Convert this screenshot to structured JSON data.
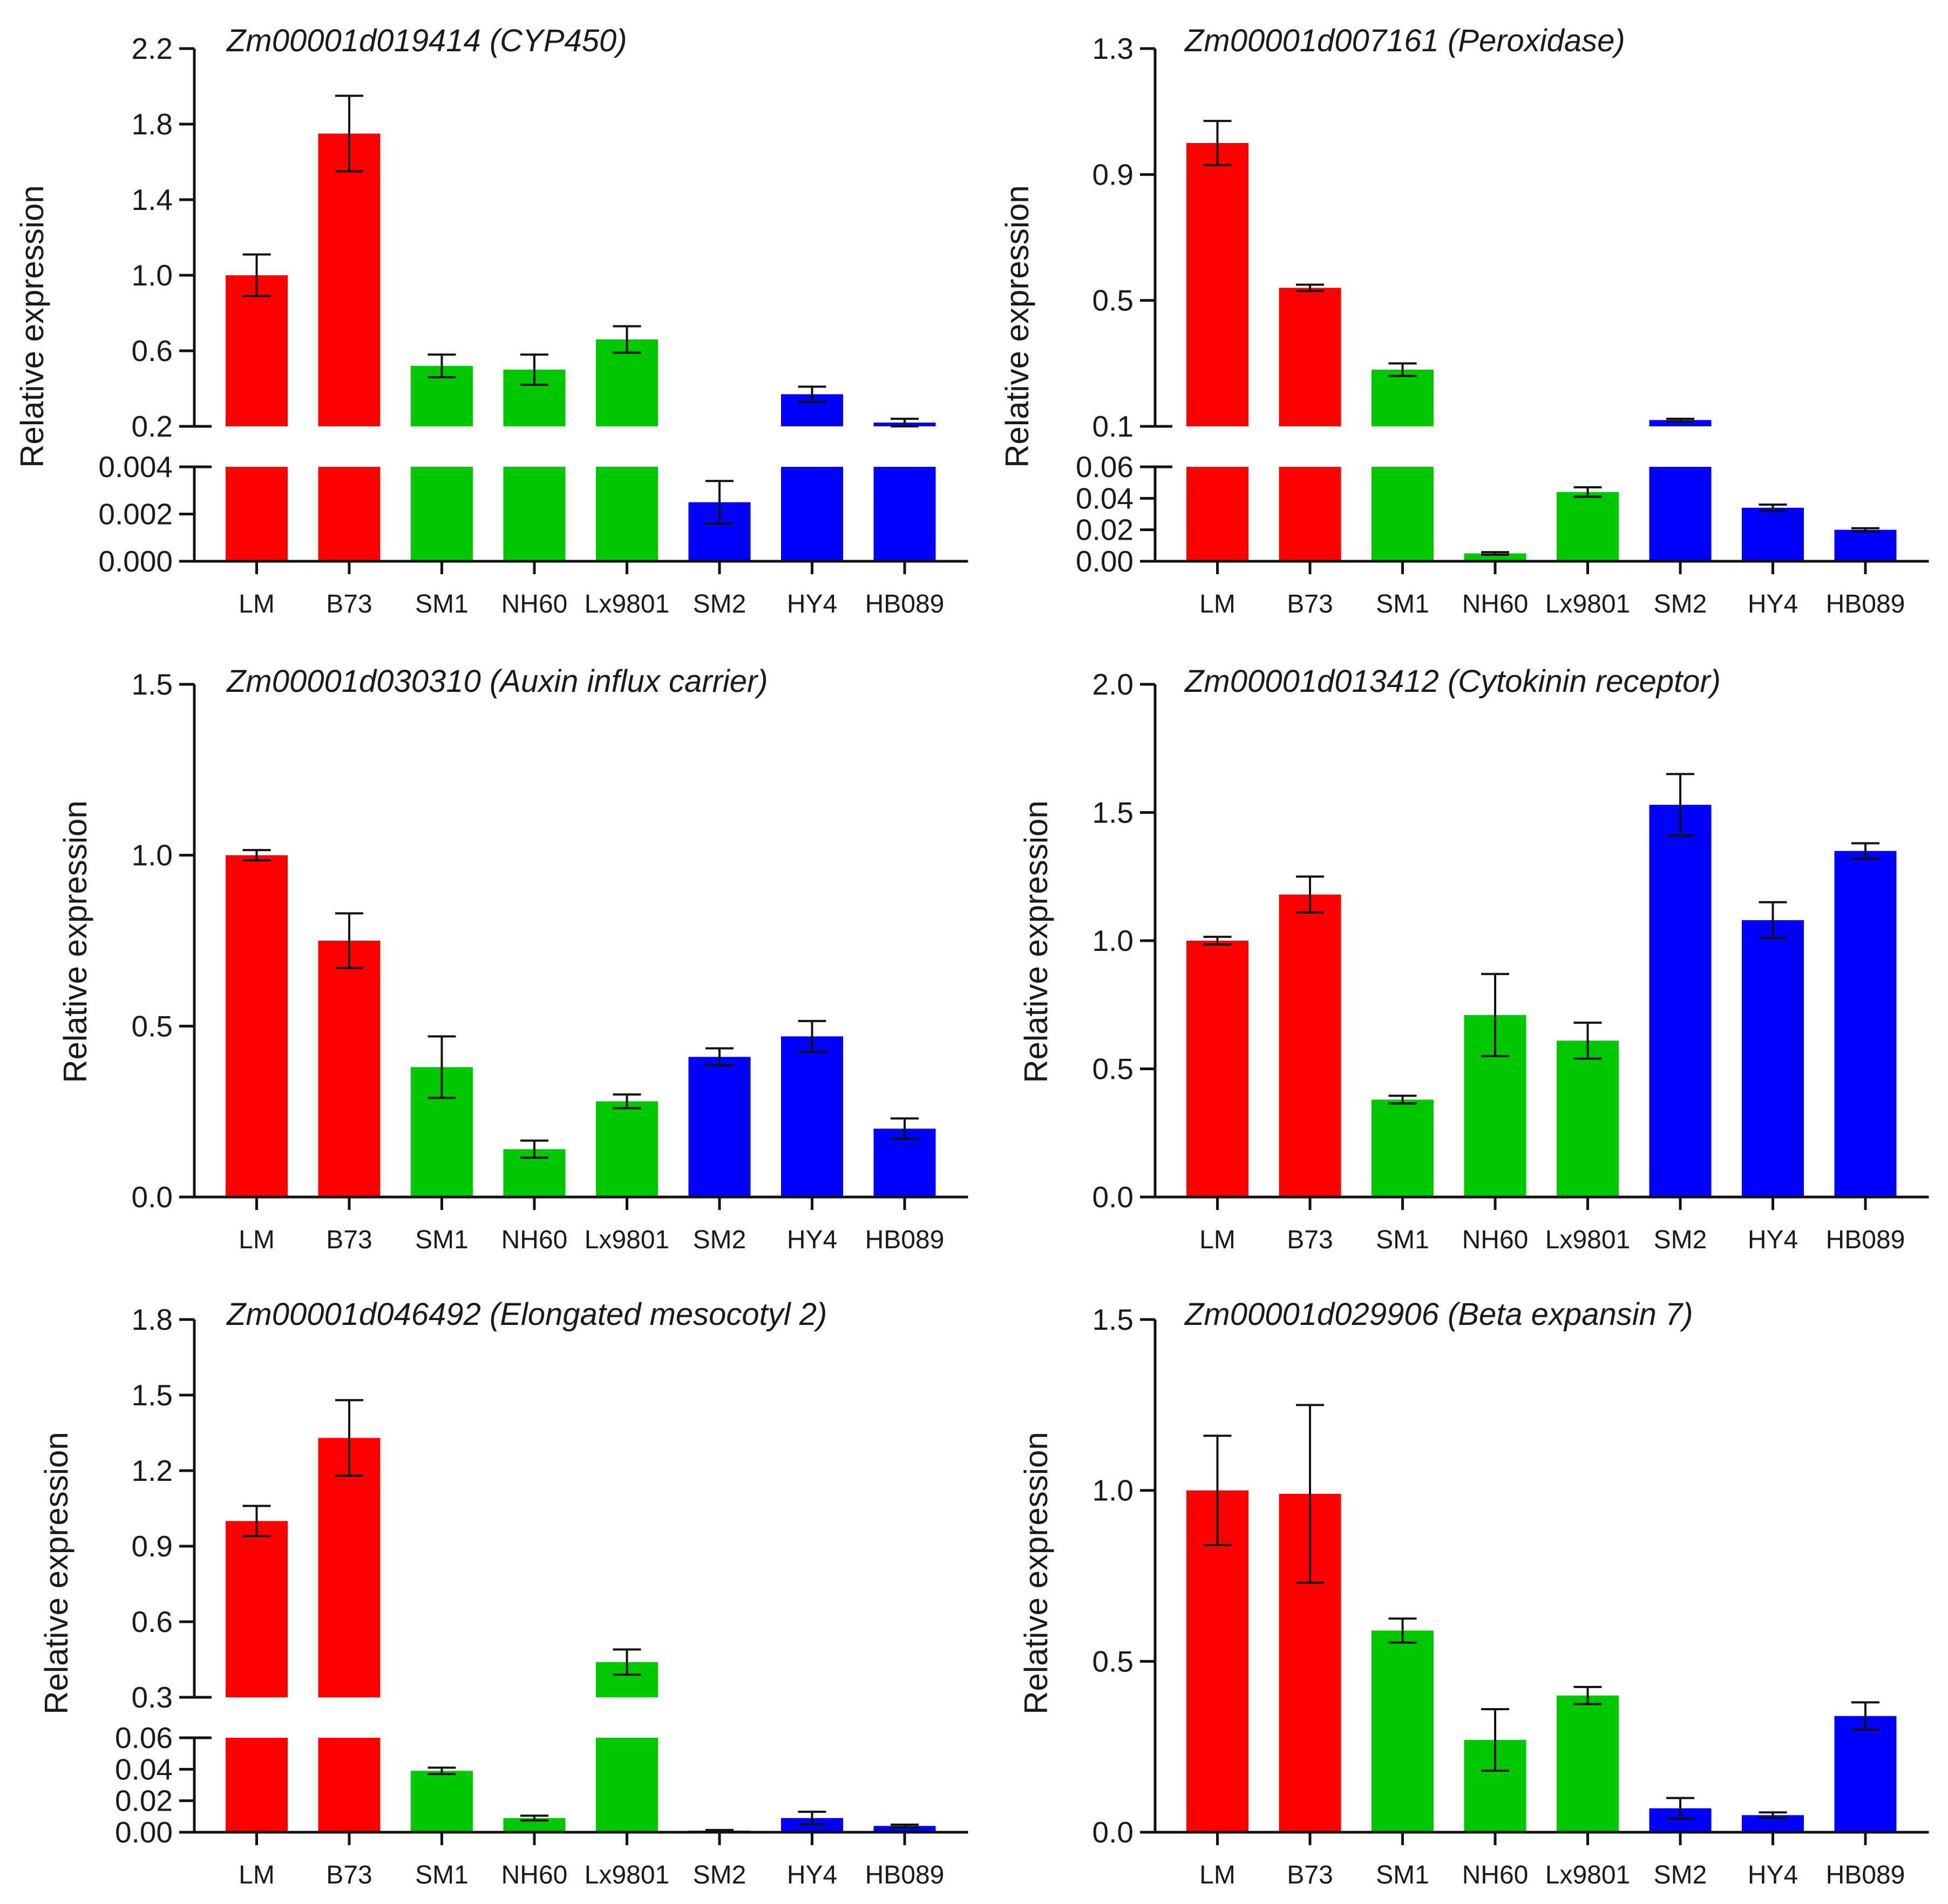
{
  "colors": {
    "red": "#ff0000",
    "green": "#00c800",
    "blue": "#0000ff"
  },
  "chart_data": [
    {
      "type": "bar",
      "title": "Zm00001d019414 (CYP450)",
      "ylabel": "Relative expression",
      "categories": [
        "LM",
        "B73",
        "SM1",
        "NH60",
        "Lx9801",
        "SM2",
        "HY4",
        "HB089"
      ],
      "bar_colors": [
        "red",
        "red",
        "green",
        "green",
        "green",
        "blue",
        "blue",
        "blue"
      ],
      "values": [
        1.0,
        1.75,
        0.52,
        0.5,
        0.66,
        0.0025,
        0.37,
        0.22
      ],
      "errors": [
        0.11,
        0.2,
        0.06,
        0.08,
        0.07,
        0.0009,
        0.04,
        0.02
      ],
      "axis_break": true,
      "lower_range": [
        0,
        0.004
      ],
      "lower_ticks": [
        "0.000",
        "0.002",
        "0.004"
      ],
      "upper_range": [
        0.2,
        2.2
      ],
      "upper_ticks": [
        "0.2",
        "0.6",
        "1.0",
        "1.4",
        "1.8",
        "2.2"
      ]
    },
    {
      "type": "bar",
      "title": "Zm00001d007161 (Peroxidase)",
      "ylabel": "Relative expression",
      "categories": [
        "LM",
        "B73",
        "SM1",
        "NH60",
        "Lx9801",
        "SM2",
        "HY4",
        "HB089"
      ],
      "bar_colors": [
        "red",
        "red",
        "green",
        "green",
        "green",
        "blue",
        "blue",
        "blue"
      ],
      "values": [
        1.0,
        0.54,
        0.28,
        0.005,
        0.044,
        0.12,
        0.034,
        0.02
      ],
      "errors": [
        0.07,
        0.01,
        0.02,
        0.0008,
        0.003,
        0.004,
        0.002,
        0.001
      ],
      "axis_break": true,
      "lower_range": [
        0,
        0.06
      ],
      "lower_ticks": [
        "0.00",
        "0.02",
        "0.04",
        "0.06"
      ],
      "upper_range": [
        0.1,
        1.3
      ],
      "upper_ticks": [
        "0.1",
        "0.5",
        "0.9",
        "1.3"
      ]
    },
    {
      "type": "bar",
      "title": "Zm00001d030310 (Auxin influx carrier)",
      "ylabel": "Relative expression",
      "categories": [
        "LM",
        "B73",
        "SM1",
        "NH60",
        "Lx9801",
        "SM2",
        "HY4",
        "HB089"
      ],
      "bar_colors": [
        "red",
        "red",
        "green",
        "green",
        "green",
        "blue",
        "blue",
        "blue"
      ],
      "values": [
        1.0,
        0.75,
        0.38,
        0.14,
        0.28,
        0.41,
        0.47,
        0.2
      ],
      "errors": [
        0.015,
        0.08,
        0.09,
        0.025,
        0.02,
        0.025,
        0.045,
        0.03
      ],
      "axis_break": false,
      "range": [
        0,
        1.5
      ],
      "ticks": [
        "0.0",
        "0.5",
        "1.0",
        "1.5"
      ]
    },
    {
      "type": "bar",
      "title": "Zm00001d013412 (Cytokinin receptor)",
      "ylabel": "Relative expression",
      "categories": [
        "LM",
        "B73",
        "SM1",
        "NH60",
        "Lx9801",
        "SM2",
        "HY4",
        "HB089"
      ],
      "bar_colors": [
        "red",
        "red",
        "green",
        "green",
        "green",
        "blue",
        "blue",
        "blue"
      ],
      "values": [
        1.0,
        1.18,
        0.38,
        0.71,
        0.61,
        1.53,
        1.08,
        1.35
      ],
      "errors": [
        0.015,
        0.07,
        0.015,
        0.16,
        0.07,
        0.12,
        0.07,
        0.03
      ],
      "axis_break": false,
      "range": [
        0,
        2.0
      ],
      "ticks": [
        "0.0",
        "0.5",
        "1.0",
        "1.5",
        "2.0"
      ]
    },
    {
      "type": "bar",
      "title": "Zm00001d046492 (Elongated mesocotyl 2)",
      "ylabel": "Relative expression",
      "categories": [
        "LM",
        "B73",
        "SM1",
        "NH60",
        "Lx9801",
        "SM2",
        "HY4",
        "HB089"
      ],
      "bar_colors": [
        "red",
        "red",
        "green",
        "green",
        "green",
        "blue",
        "blue",
        "blue"
      ],
      "values": [
        1.0,
        1.33,
        0.039,
        0.009,
        0.44,
        0.001,
        0.009,
        0.004
      ],
      "errors": [
        0.06,
        0.15,
        0.002,
        0.0015,
        0.05,
        0.0004,
        0.004,
        0.0008
      ],
      "axis_break": true,
      "lower_range": [
        0,
        0.06
      ],
      "lower_ticks": [
        "0.00",
        "0.02",
        "0.04",
        "0.06"
      ],
      "upper_range": [
        0.3,
        1.8
      ],
      "upper_ticks": [
        "0.3",
        "0.6",
        "0.9",
        "1.2",
        "1.5",
        "1.8"
      ]
    },
    {
      "type": "bar",
      "title": "Zm00001d029906 (Beta expansin 7)",
      "ylabel": "Relative expression",
      "categories": [
        "LM",
        "B73",
        "SM1",
        "NH60",
        "Lx9801",
        "SM2",
        "HY4",
        "HB089"
      ],
      "bar_colors": [
        "red",
        "red",
        "green",
        "green",
        "green",
        "blue",
        "blue",
        "blue"
      ],
      "values": [
        1.0,
        0.99,
        0.59,
        0.27,
        0.4,
        0.07,
        0.05,
        0.34
      ],
      "errors": [
        0.16,
        0.26,
        0.035,
        0.09,
        0.025,
        0.03,
        0.008,
        0.04
      ],
      "axis_break": false,
      "range": [
        0,
        1.5
      ],
      "ticks": [
        "0.0",
        "0.5",
        "1.0",
        "1.5"
      ]
    }
  ]
}
